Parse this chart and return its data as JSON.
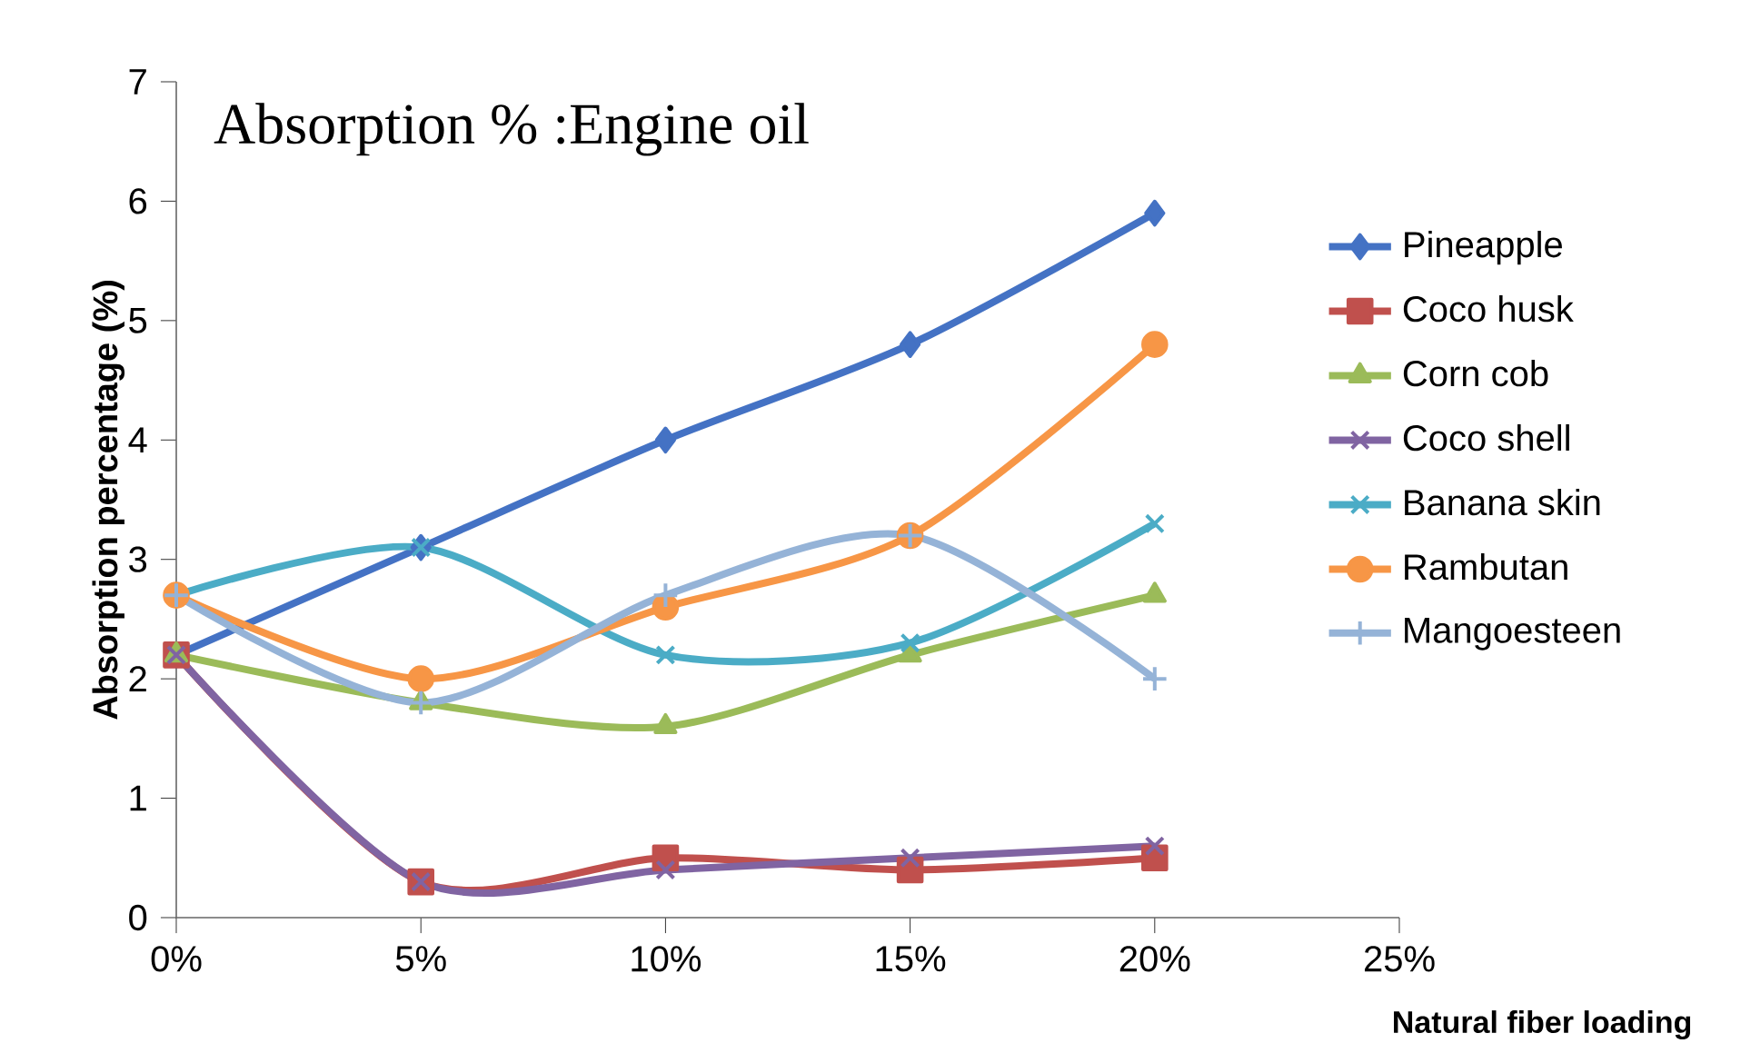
{
  "chart_data": {
    "type": "line",
    "title": "Absorption % :Engine oil",
    "xlabel": "Natural fiber loading",
    "ylabel": "Absorption percentage (%)",
    "x": [
      0,
      5,
      10,
      15,
      20
    ],
    "xlim": [
      0,
      25
    ],
    "xticks": [
      {
        "value": 0,
        "label": "0%"
      },
      {
        "value": 5,
        "label": "5%"
      },
      {
        "value": 10,
        "label": "10%"
      },
      {
        "value": 15,
        "label": "15%"
      },
      {
        "value": 20,
        "label": "20%"
      },
      {
        "value": 25,
        "label": "25%"
      }
    ],
    "ylim": [
      0,
      7
    ],
    "yticks": [
      0,
      1,
      2,
      3,
      4,
      5,
      6,
      7
    ],
    "legend": "right",
    "line_style": "solid",
    "series": [
      {
        "name": "Pineapple",
        "color": "#4472c4",
        "marker": "diamond",
        "values": [
          2.2,
          3.1,
          4.0,
          4.8,
          5.9
        ]
      },
      {
        "name": "Coco husk",
        "color": "#c0504d",
        "marker": "square",
        "values": [
          2.2,
          0.3,
          0.5,
          0.4,
          0.5
        ]
      },
      {
        "name": "Corn cob",
        "color": "#9bbb59",
        "marker": "triangle",
        "values": [
          2.2,
          1.8,
          1.6,
          2.2,
          2.7
        ]
      },
      {
        "name": "Coco shell",
        "color": "#8064a2",
        "marker": "cross",
        "values": [
          2.2,
          0.3,
          0.4,
          0.5,
          0.6
        ]
      },
      {
        "name": "Banana skin",
        "color": "#4bacc6",
        "marker": "cross",
        "values": [
          2.7,
          3.1,
          2.2,
          2.3,
          3.3
        ]
      },
      {
        "name": "Rambutan",
        "color": "#f79646",
        "marker": "circle",
        "values": [
          2.7,
          2.0,
          2.6,
          3.2,
          4.8
        ]
      },
      {
        "name": "Mangoesteen",
        "color": "#95b3d7",
        "marker": "plus",
        "values": [
          2.7,
          1.8,
          2.7,
          3.2,
          2.0
        ]
      }
    ]
  }
}
